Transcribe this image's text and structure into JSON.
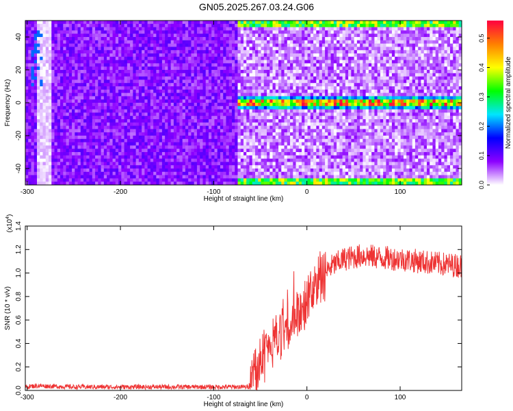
{
  "title": "GN05.2025.267.03.24.G06",
  "chart_data": [
    {
      "type": "heatmap",
      "title": "GN05.2025.267.03.24.G06",
      "xlabel": "Height of straight line (km)",
      "ylabel": "Frequency (Hz)",
      "xlim": [
        -302,
        166
      ],
      "ylim": [
        -50,
        50
      ],
      "xticks": [
        -300,
        -200,
        -100,
        0,
        100
      ],
      "yticks": [
        -40,
        -20,
        0,
        20,
        40
      ],
      "colorbar": {
        "label": "Normalized spectral amplitude",
        "range": [
          0,
          0.56
        ],
        "ticks": [
          "0.0",
          "0.1",
          "0.2",
          "0.3",
          "0.4",
          "0.5"
        ],
        "colors": [
          "#ffffff",
          "#8c00ff",
          "#0000ff",
          "#00e5ff",
          "#00ff00",
          "#ffff00",
          "#ff7f00",
          "#ff0040"
        ]
      },
      "features": {
        "noisy_region_x": [
          -302,
          -75
        ],
        "signal_start_x": -75,
        "signal_frequency_hz": 0,
        "aliased_bands_hz": [
          -49,
          49
        ],
        "faint_diagonal_x": [
          -290,
          -275
        ]
      },
      "grid": false
    },
    {
      "type": "line",
      "xlabel": "Height of straight line (km)",
      "ylabel": "SNR (10 * v/v)",
      "y_scale_label": "(x10",
      "y_scale_exp": "4",
      "xlim": [
        -302,
        166
      ],
      "ylim": [
        0,
        1.4
      ],
      "xticks": [
        -300,
        -200,
        -100,
        0,
        100
      ],
      "yticks": [
        "0.0",
        "0.2",
        "0.4",
        "0.6",
        "0.8",
        "1.0",
        "1.2",
        "1.4"
      ],
      "line_color": "#ee3333",
      "series_shape": [
        [
          -302,
          0.03
        ],
        [
          -290,
          0.04
        ],
        [
          -250,
          0.03
        ],
        [
          -200,
          0.03
        ],
        [
          -150,
          0.03
        ],
        [
          -100,
          0.03
        ],
        [
          -62,
          0.03
        ],
        [
          -55,
          0.2
        ],
        [
          -45,
          0.3
        ],
        [
          -35,
          0.4
        ],
        [
          -20,
          0.55
        ],
        [
          -5,
          0.7
        ],
        [
          10,
          0.9
        ],
        [
          25,
          1.05
        ],
        [
          40,
          1.12
        ],
        [
          60,
          1.15
        ],
        [
          80,
          1.13
        ],
        [
          100,
          1.12
        ],
        [
          120,
          1.1
        ],
        [
          140,
          1.08
        ],
        [
          166,
          1.06
        ]
      ],
      "grid": false
    }
  ]
}
